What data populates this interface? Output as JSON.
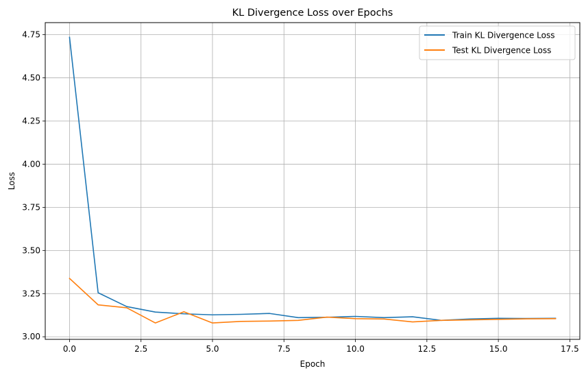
{
  "chart_data": {
    "type": "line",
    "title": "KL Divergence Loss over Epochs",
    "xlabel": "Epoch",
    "ylabel": "Loss",
    "xlim": [
      -0.85,
      17.85
    ],
    "ylim": [
      2.985,
      4.82
    ],
    "xticks": [
      0.0,
      2.5,
      5.0,
      7.5,
      10.0,
      12.5,
      15.0,
      17.5
    ],
    "xtick_labels": [
      "0.0",
      "2.5",
      "5.0",
      "7.5",
      "10.0",
      "12.5",
      "15.0",
      "17.5"
    ],
    "yticks": [
      3.0,
      3.25,
      3.5,
      3.75,
      4.0,
      4.25,
      4.5,
      4.75
    ],
    "ytick_labels": [
      "3.00",
      "3.25",
      "3.50",
      "3.75",
      "4.00",
      "4.25",
      "4.50",
      "4.75"
    ],
    "grid": true,
    "legend_position": "top-right",
    "x": [
      0,
      1,
      2,
      3,
      4,
      5,
      6,
      7,
      8,
      9,
      10,
      11,
      12,
      13,
      14,
      15,
      16,
      17
    ],
    "series": [
      {
        "name": "Train KL Divergence Loss",
        "color": "#1f77b4",
        "values": [
          4.735,
          3.255,
          3.175,
          3.143,
          3.133,
          3.127,
          3.13,
          3.135,
          3.111,
          3.113,
          3.118,
          3.111,
          3.116,
          3.095,
          3.103,
          3.107,
          3.106,
          3.107
        ]
      },
      {
        "name": "Test KL Divergence Loss",
        "color": "#ff7f0e",
        "values": [
          3.338,
          3.185,
          3.168,
          3.08,
          3.145,
          3.08,
          3.089,
          3.091,
          3.095,
          3.114,
          3.105,
          3.103,
          3.086,
          3.095,
          3.098,
          3.101,
          3.104,
          3.105
        ]
      }
    ]
  }
}
